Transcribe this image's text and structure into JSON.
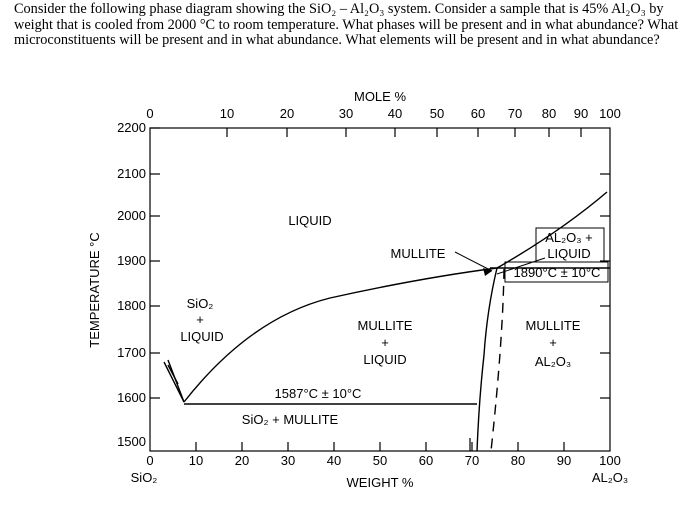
{
  "question": "Consider the following phase diagram showing the SiO₂ – Al₂O₃ system. Consider a sample that is 45% Al₂O₃ by weight that is cooled from 2000 °C to room temperature. What phases will be present and in what abundance? What microconstituents will be present and in what abundance. What elements will be present and in what abundance?",
  "diagram": {
    "top_axis_title": "MOLE %",
    "top_ticks": [
      "0",
      "10",
      "20",
      "30",
      "40",
      "50",
      "60",
      "70",
      "80",
      "90",
      "100"
    ],
    "bottom_axis_title": "WEIGHT %",
    "bottom_ticks": [
      "0",
      "10",
      "20",
      "30",
      "40",
      "50",
      "60",
      "70",
      "80",
      "90",
      "100"
    ],
    "y_axis_title": "TEMPERATURE °C",
    "y_ticks": [
      "2200",
      "2100",
      "2000",
      "1900",
      "1800",
      "1700",
      "1600",
      "1500"
    ],
    "left_component": "SiO₂",
    "right_component": "AL₂O₃",
    "regions": {
      "liquid": "LIQUID",
      "mullite_pointer": "MULLITE",
      "sio2_line": "SiO₂",
      "plus_line": "+",
      "liquid_line": "LIQUID",
      "mullite_liquid_line1": "MULLITE",
      "mullite_liquid_line2": "+",
      "mullite_liquid_line3": "LIQUID",
      "al2o3_liquid_line1": "AL₂O₃ +",
      "al2o3_liquid_line2": "LIQUID",
      "mullite_al2o3_line1": "MULLITE",
      "mullite_al2o3_line2": "+",
      "mullite_al2o3_line3": "AL₂O₃",
      "sio2_mullite": "SiO₂ + MULLITE"
    },
    "annotations": {
      "eutectic": "1587°C ± 10°C",
      "peritectic": "1890°C ± 10°C"
    }
  }
}
